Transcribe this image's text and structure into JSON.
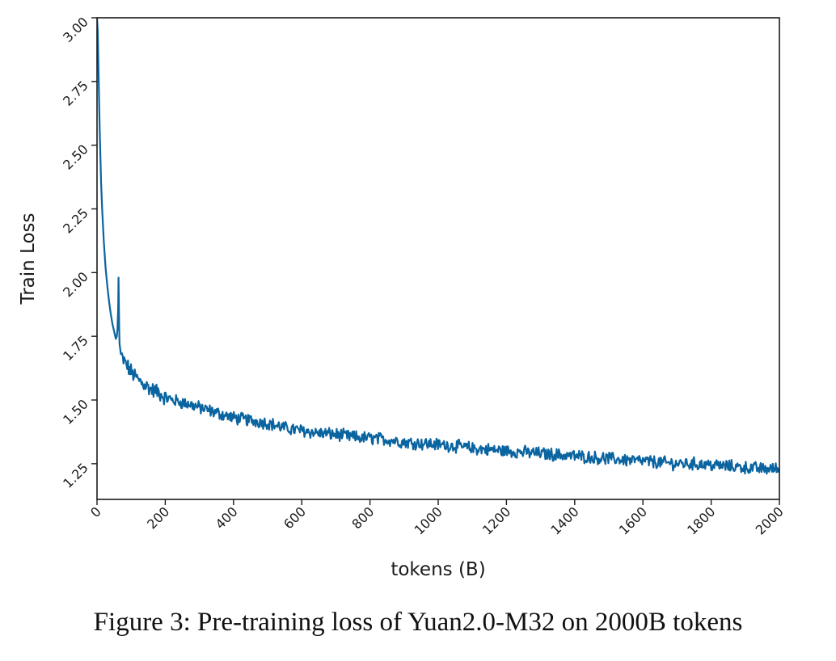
{
  "caption": "Figure 3: Pre-training loss of Yuan2.0-M32 on 2000B tokens",
  "colors": {
    "line": "#0a64a0",
    "axis": "#1a1a1a"
  },
  "chart_data": {
    "type": "line",
    "title": "",
    "xlabel": "tokens (B)",
    "ylabel": "Train Loss",
    "xlim": [
      0,
      2000
    ],
    "ylim": [
      1.11,
      3.0
    ],
    "xticks": [
      0,
      200,
      400,
      600,
      800,
      1000,
      1200,
      1400,
      1600,
      1800,
      2000
    ],
    "yticks": [
      1.25,
      1.5,
      1.75,
      2.0,
      2.25,
      2.5,
      2.75,
      3.0
    ],
    "xtick_labels": [
      "0",
      "200",
      "400",
      "600",
      "800",
      "1000",
      "1200",
      "1400",
      "1600",
      "1800",
      "2000"
    ],
    "ytick_labels": [
      "1.25",
      "1.50",
      "1.75",
      "2.00",
      "2.25",
      "2.50",
      "2.75",
      "3.00"
    ],
    "grid": false,
    "legend": "none",
    "series": [
      {
        "x": [
          0,
          2,
          5,
          8,
          10,
          12,
          15,
          20,
          25,
          30,
          35,
          40,
          45,
          50,
          55,
          58,
          60,
          62,
          63,
          64,
          65,
          66,
          68,
          70,
          75,
          80,
          90,
          100,
          120,
          140,
          160,
          180,
          200,
          220,
          250,
          280,
          300,
          350,
          400,
          450,
          500,
          550,
          600,
          650,
          700,
          750,
          800,
          850,
          900,
          950,
          1000,
          1050,
          1100,
          1150,
          1200,
          1250,
          1300,
          1350,
          1400,
          1450,
          1500,
          1550,
          1600,
          1650,
          1700,
          1750,
          1800,
          1850,
          1900,
          1950,
          2000
        ],
        "y": [
          3.0,
          2.95,
          2.75,
          2.55,
          2.45,
          2.35,
          2.25,
          2.12,
          2.02,
          1.95,
          1.89,
          1.84,
          1.8,
          1.77,
          1.74,
          1.75,
          1.78,
          1.86,
          1.98,
          1.88,
          1.78,
          1.72,
          1.7,
          1.68,
          1.66,
          1.65,
          1.63,
          1.61,
          1.58,
          1.56,
          1.54,
          1.53,
          1.51,
          1.5,
          1.49,
          1.48,
          1.47,
          1.45,
          1.43,
          1.42,
          1.41,
          1.39,
          1.38,
          1.37,
          1.365,
          1.355,
          1.35,
          1.345,
          1.335,
          1.33,
          1.325,
          1.32,
          1.31,
          1.305,
          1.3,
          1.295,
          1.29,
          1.285,
          1.28,
          1.275,
          1.27,
          1.265,
          1.26,
          1.255,
          1.25,
          1.25,
          1.245,
          1.24,
          1.235,
          1.23,
          1.23
        ]
      }
    ]
  }
}
